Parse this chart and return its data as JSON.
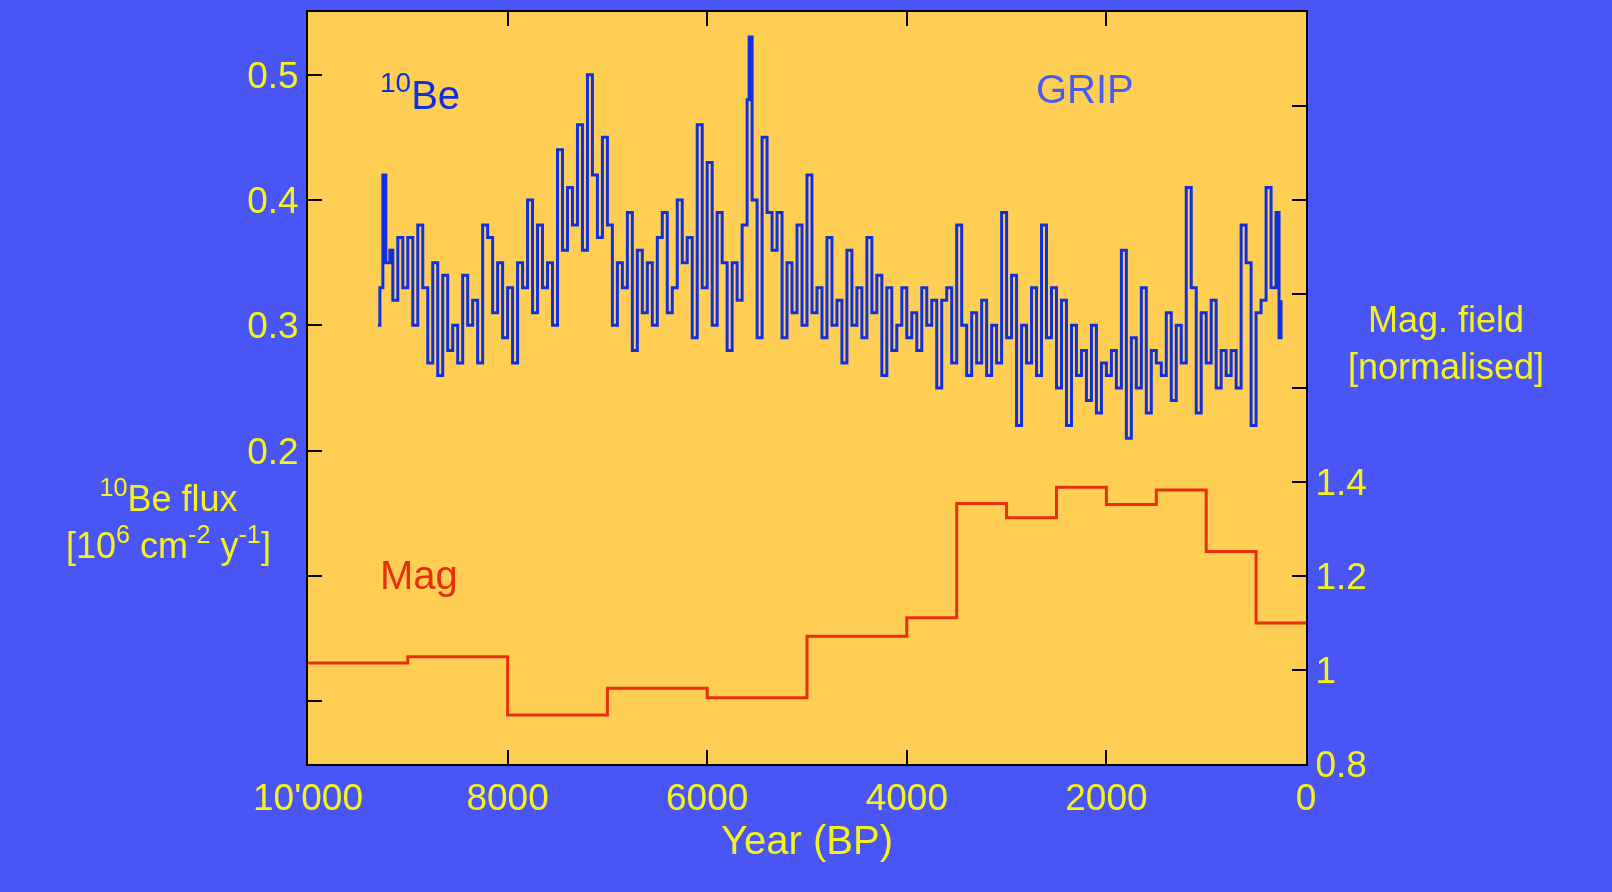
{
  "chart_data": {
    "type": "step",
    "xlabel": "Year (BP)",
    "ylabel": "$^{10}$Be flux\n[10$^{6}$ cm$^{-2}$ y$^{-1}$]",
    "y2label": "Mag. field\n[normalised]",
    "annotations": [
      "GRIP"
    ],
    "xlim": [
      10000,
      0
    ],
    "xticks": [
      {
        "value": 10000,
        "label": "10'000"
      },
      8000,
      6000,
      4000,
      2000,
      0
    ],
    "ylim": [
      -0.05,
      0.55
    ],
    "yticks": [
      {
        "value": 0,
        "label": null
      },
      {
        "value": 0.1,
        "label": null
      },
      0.2,
      0.3,
      0.4,
      0.5
    ],
    "y2lim": [
      0.8,
      2.4
    ],
    "y2ticks": [
      0.8,
      1,
      1.2,
      1.4,
      {
        "value": 1.6,
        "label": null
      },
      {
        "value": 1.8,
        "label": null
      },
      {
        "value": 2.0,
        "label": null
      },
      {
        "value": 2.2,
        "label": null
      }
    ],
    "series": [
      {
        "name": "$^{10}$Be",
        "color": "#1030e0",
        "x": [
          9300,
          9280,
          9250,
          9220,
          9180,
          9150,
          9100,
          9050,
          9000,
          8950,
          8900,
          8850,
          8800,
          8750,
          8700,
          8650,
          8600,
          8550,
          8500,
          8450,
          8400,
          8350,
          8300,
          8250,
          8200,
          8150,
          8100,
          8050,
          8000,
          7950,
          7900,
          7850,
          7800,
          7750,
          7700,
          7650,
          7600,
          7550,
          7500,
          7450,
          7400,
          7350,
          7300,
          7250,
          7200,
          7150,
          7100,
          7050,
          7000,
          6950,
          6900,
          6850,
          6800,
          6750,
          6700,
          6650,
          6600,
          6550,
          6500,
          6450,
          6400,
          6350,
          6300,
          6250,
          6200,
          6150,
          6100,
          6050,
          6000,
          5950,
          5900,
          5850,
          5800,
          5750,
          5700,
          5650,
          5600,
          5580,
          5550,
          5500,
          5450,
          5400,
          5350,
          5300,
          5250,
          5200,
          5150,
          5100,
          5050,
          5000,
          4950,
          4900,
          4850,
          4800,
          4750,
          4700,
          4650,
          4600,
          4550,
          4500,
          4450,
          4400,
          4350,
          4300,
          4250,
          4200,
          4150,
          4100,
          4050,
          4000,
          3950,
          3900,
          3850,
          3800,
          3750,
          3700,
          3650,
          3600,
          3550,
          3500,
          3450,
          3400,
          3350,
          3300,
          3250,
          3200,
          3150,
          3100,
          3050,
          3000,
          2950,
          2900,
          2850,
          2800,
          2750,
          2700,
          2650,
          2600,
          2550,
          2500,
          2450,
          2400,
          2350,
          2300,
          2250,
          2200,
          2150,
          2100,
          2050,
          2000,
          1950,
          1900,
          1850,
          1800,
          1750,
          1700,
          1650,
          1600,
          1550,
          1500,
          1450,
          1400,
          1350,
          1300,
          1250,
          1200,
          1150,
          1100,
          1050,
          1000,
          950,
          900,
          850,
          800,
          750,
          700,
          650,
          600,
          550,
          500,
          450,
          400,
          350,
          300,
          270,
          250
        ],
        "values": [
          0.3,
          0.33,
          0.42,
          0.35,
          0.36,
          0.32,
          0.37,
          0.33,
          0.37,
          0.3,
          0.38,
          0.33,
          0.27,
          0.35,
          0.26,
          0.34,
          0.28,
          0.3,
          0.27,
          0.34,
          0.3,
          0.32,
          0.27,
          0.38,
          0.37,
          0.31,
          0.35,
          0.29,
          0.33,
          0.27,
          0.35,
          0.33,
          0.4,
          0.31,
          0.38,
          0.33,
          0.35,
          0.3,
          0.44,
          0.36,
          0.41,
          0.38,
          0.46,
          0.36,
          0.5,
          0.42,
          0.37,
          0.45,
          0.38,
          0.3,
          0.35,
          0.33,
          0.39,
          0.28,
          0.36,
          0.31,
          0.35,
          0.3,
          0.37,
          0.39,
          0.31,
          0.33,
          0.4,
          0.35,
          0.37,
          0.29,
          0.46,
          0.33,
          0.43,
          0.3,
          0.39,
          0.35,
          0.28,
          0.35,
          0.32,
          0.38,
          0.48,
          0.53,
          0.4,
          0.29,
          0.45,
          0.39,
          0.36,
          0.39,
          0.29,
          0.35,
          0.31,
          0.38,
          0.3,
          0.42,
          0.31,
          0.33,
          0.29,
          0.37,
          0.3,
          0.32,
          0.27,
          0.36,
          0.3,
          0.33,
          0.29,
          0.37,
          0.31,
          0.34,
          0.26,
          0.33,
          0.28,
          0.3,
          0.33,
          0.29,
          0.31,
          0.28,
          0.33,
          0.3,
          0.32,
          0.25,
          0.32,
          0.33,
          0.27,
          0.38,
          0.3,
          0.26,
          0.31,
          0.27,
          0.32,
          0.26,
          0.3,
          0.27,
          0.39,
          0.29,
          0.34,
          0.22,
          0.3,
          0.27,
          0.33,
          0.26,
          0.38,
          0.29,
          0.33,
          0.25,
          0.32,
          0.22,
          0.3,
          0.26,
          0.28,
          0.24,
          0.3,
          0.23,
          0.27,
          0.26,
          0.28,
          0.25,
          0.36,
          0.21,
          0.29,
          0.25,
          0.33,
          0.23,
          0.28,
          0.27,
          0.26,
          0.31,
          0.24,
          0.3,
          0.27,
          0.41,
          0.33,
          0.23,
          0.31,
          0.27,
          0.32,
          0.25,
          0.28,
          0.26,
          0.28,
          0.25,
          0.38,
          0.35,
          0.22,
          0.31,
          0.32,
          0.41,
          0.33,
          0.39,
          0.29,
          0.32
        ]
      },
      {
        "name": "Mag",
        "color": "#e8300c",
        "axis": "y2",
        "x": [
          10000,
          9000,
          8000,
          7000,
          6000,
          5000,
          4000,
          3500,
          3000,
          2500,
          2000,
          1500,
          1000,
          500,
          0
        ],
        "values": [
          1.015,
          1.028,
          0.904,
          0.961,
          0.941,
          1.072,
          1.111,
          1.354,
          1.324,
          1.389,
          1.352,
          1.383,
          1.252,
          1.1,
          1.1
        ]
      }
    ]
  }
}
